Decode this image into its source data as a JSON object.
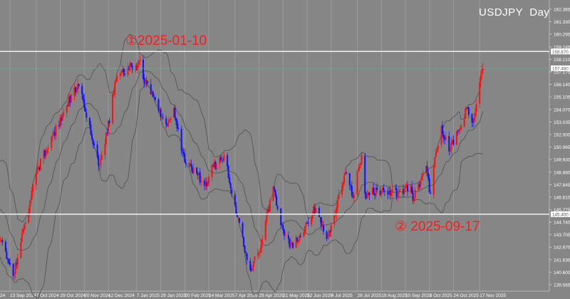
{
  "chart_data": {
    "type": "candlestick",
    "title": "USDJPY  Day",
    "symbol": "USDJPY",
    "timeframe": "Day",
    "colors": {
      "background": "#868686",
      "up": "#ff1010",
      "down": "#1010ff",
      "bands": "#555555",
      "hline": "#f2f2f2",
      "current_price_line": "#5fae95",
      "annotation": "#ff1a1a",
      "text": "#ffffff"
    },
    "indicator": "Bollinger Bands",
    "grid": true,
    "ylim": [
      139.1,
      163.0
    ],
    "y_ticks": [
      "162.365",
      "161.330",
      "160.295",
      "159.245",
      "158.210",
      "157.175",
      "156.140",
      "155.105",
      "154.070",
      "153.035",
      "152.000",
      "150.965",
      "149.930",
      "148.880",
      "147.845",
      "146.810",
      "145.775",
      "144.740",
      "143.705",
      "142.670",
      "141.635",
      "140.600",
      "139.565"
    ],
    "x_ticks": [
      {
        "date": "2024-09-13",
        "label": "13 Sep 2024"
      },
      {
        "date": "2024-10-07",
        "label": "7 Oct 2024"
      },
      {
        "date": "2024-10-29",
        "label": "29 Oct 2024"
      },
      {
        "date": "2024-11-20",
        "label": "20 Nov 2024"
      },
      {
        "date": "2024-12-12",
        "label": "12 Dec 2024"
      },
      {
        "date": "2025-01-07",
        "label": "7 Jan 2025"
      },
      {
        "date": "2025-01-29",
        "label": "29 Jan 2025"
      },
      {
        "date": "2025-02-20",
        "label": "20 Feb 2025"
      },
      {
        "date": "2025-03-14",
        "label": "14 Mar 2025"
      },
      {
        "date": "2025-04-07",
        "label": "7 Apr 2025"
      },
      {
        "date": "2025-04-29",
        "label": "29 Apr 2025"
      },
      {
        "date": "2025-05-21",
        "label": "21 May 2025"
      },
      {
        "date": "2025-06-12",
        "label": "12 Jun 2025"
      },
      {
        "date": "2025-07-04",
        "label": "4 Jul 2025"
      },
      {
        "date": "2025-07-28",
        "label": "28 Jul 2025"
      },
      {
        "date": "2025-08-19",
        "label": "19 Aug 2025"
      },
      {
        "date": "2025-09-10",
        "label": "10 Sep 2025"
      },
      {
        "date": "2025-10-02",
        "label": "2 Oct 2025"
      },
      {
        "date": "2025-10-24",
        "label": "24 Oct 2025"
      },
      {
        "date": "2025-11-17",
        "label": "17 Nov 2025"
      }
    ],
    "close_path": [
      [
        "2024-08-01",
        149.5
      ],
      [
        "2024-08-05",
        143.5
      ],
      [
        "2024-08-15",
        149.2
      ],
      [
        "2024-08-26",
        144.4
      ],
      [
        "2024-09-05",
        143.3
      ],
      [
        "2024-09-16",
        140.3
      ],
      [
        "2024-09-27",
        144.7
      ],
      [
        "2024-10-01",
        146.2
      ],
      [
        "2024-10-07",
        148.8
      ],
      [
        "2024-10-21",
        151.8
      ],
      [
        "2024-10-28",
        152.7
      ],
      [
        "2024-11-08",
        155.3
      ],
      [
        "2024-11-15",
        156.0
      ],
      [
        "2024-11-20",
        154.2
      ],
      [
        "2024-11-28",
        151.2
      ],
      [
        "2024-12-04",
        149.4
      ],
      [
        "2024-12-11",
        152.1
      ],
      [
        "2024-12-18",
        156.3
      ],
      [
        "2024-12-24",
        157.3
      ],
      [
        "2025-01-06",
        157.6
      ],
      [
        "2025-01-10",
        158.2
      ],
      [
        "2025-01-13",
        156.6
      ],
      [
        "2025-01-23",
        155.1
      ],
      [
        "2025-02-04",
        152.7
      ],
      [
        "2025-02-10",
        154.2
      ],
      [
        "2025-02-20",
        149.7
      ],
      [
        "2025-03-03",
        148.8
      ],
      [
        "2025-03-12",
        147.7
      ],
      [
        "2025-03-18",
        149.4
      ],
      [
        "2025-03-28",
        150.3
      ],
      [
        "2025-04-04",
        147.1
      ],
      [
        "2025-04-14",
        143.5
      ],
      [
        "2025-04-21",
        140.8
      ],
      [
        "2025-05-01",
        142.9
      ],
      [
        "2025-05-12",
        147.7
      ],
      [
        "2025-05-21",
        144.1
      ],
      [
        "2025-05-30",
        142.6
      ],
      [
        "2025-06-11",
        144.7
      ],
      [
        "2025-06-20",
        145.9
      ],
      [
        "2025-07-01",
        143.5
      ],
      [
        "2025-07-07",
        145.3
      ],
      [
        "2025-07-14",
        147.7
      ],
      [
        "2025-07-18",
        148.8
      ],
      [
        "2025-07-24",
        146.8
      ],
      [
        "2025-08-01",
        150.3
      ],
      [
        "2025-08-04",
        147.1
      ],
      [
        "2025-08-15",
        147.4
      ],
      [
        "2025-09-03",
        147.1
      ],
      [
        "2025-09-15",
        147.7
      ],
      [
        "2025-09-17",
        146.5
      ],
      [
        "2025-09-29",
        149.4
      ],
      [
        "2025-10-03",
        147.1
      ],
      [
        "2025-10-08",
        150.6
      ],
      [
        "2025-10-13",
        152.7
      ],
      [
        "2025-10-20",
        150.6
      ],
      [
        "2025-10-29",
        152.4
      ],
      [
        "2025-11-05",
        154.2
      ],
      [
        "2025-11-10",
        153.0
      ],
      [
        "2025-11-14",
        154.5
      ],
      [
        "2025-11-20",
        157.5
      ]
    ],
    "hlines": [
      {
        "price": 158.87,
        "label": "158.870",
        "color": "#f2f2f2"
      },
      {
        "price": 157.48,
        "label": "157.480",
        "color": "#5fae95"
      },
      {
        "price": 145.4,
        "label": "145.400",
        "color": "#f2f2f2"
      }
    ],
    "annotations": [
      {
        "text": "①2025-01-10"
      },
      {
        "text": "② 2025-09-17"
      }
    ]
  }
}
